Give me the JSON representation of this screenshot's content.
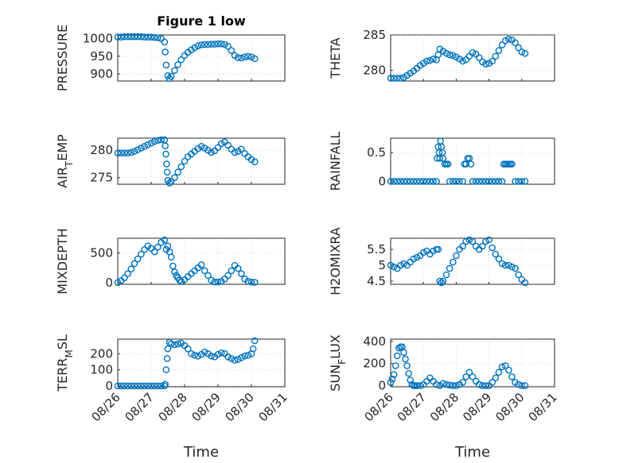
{
  "figure": {
    "title": "Figure 1 low",
    "marker_color": "#0072BD"
  },
  "chart_data": [
    {
      "type": "scatter",
      "title": "Figure 1 low",
      "ylabel": "PRESSURE",
      "xlabel": "",
      "xlim": [
        "08/26",
        "08/31"
      ],
      "x_tick_labels": [],
      "ylim": [
        880,
        1010
      ],
      "y_ticks": [
        1000,
        950,
        900
      ],
      "grid": true,
      "x": [
        0.0,
        0.1,
        0.2,
        0.3,
        0.4,
        0.5,
        0.6,
        0.7,
        0.8,
        0.9,
        1.0,
        1.1,
        1.2,
        1.3,
        1.4,
        1.42,
        1.45,
        1.5,
        1.55,
        1.6,
        1.7,
        1.8,
        1.9,
        2.0,
        2.1,
        2.2,
        2.3,
        2.4,
        2.5,
        2.6,
        2.7,
        2.8,
        2.9,
        3.0,
        3.1,
        3.2,
        3.3,
        3.4,
        3.5,
        3.6,
        3.7,
        3.8,
        3.9,
        4.0,
        4.1
      ],
      "y": [
        1004,
        1004,
        1005,
        1005,
        1005,
        1005,
        1005,
        1005,
        1004,
        1004,
        1004,
        1003,
        1002,
        1000,
        990,
        962,
        925,
        895,
        887,
        893,
        910,
        926,
        940,
        952,
        961,
        968,
        974,
        979,
        982,
        983,
        983,
        984,
        984,
        985,
        985,
        983,
        978,
        966,
        952,
        946,
        945,
        948,
        950,
        948,
        943
      ]
    },
    {
      "type": "scatter",
      "ylabel": "THETA",
      "xlabel": "",
      "xlim": [
        "08/26",
        "08/31"
      ],
      "x_tick_labels": [],
      "ylim": [
        278.5,
        285
      ],
      "y_ticks": [
        285,
        280
      ],
      "grid": true,
      "x": [
        0.0,
        0.1,
        0.2,
        0.3,
        0.4,
        0.5,
        0.6,
        0.7,
        0.8,
        0.9,
        1.0,
        1.1,
        1.2,
        1.3,
        1.4,
        1.45,
        1.5,
        1.6,
        1.7,
        1.8,
        1.9,
        2.0,
        2.1,
        2.2,
        2.3,
        2.4,
        2.5,
        2.6,
        2.7,
        2.8,
        2.9,
        3.0,
        3.1,
        3.2,
        3.3,
        3.4,
        3.5,
        3.6,
        3.7,
        3.8,
        3.9,
        4.0,
        4.1
      ],
      "y": [
        278.9,
        278.9,
        278.9,
        278.9,
        279.0,
        279.3,
        279.6,
        279.9,
        280.3,
        280.7,
        281.0,
        281.3,
        281.4,
        281.6,
        281.5,
        282.2,
        283.0,
        282.7,
        282.4,
        282.2,
        282.1,
        281.9,
        281.6,
        281.3,
        281.5,
        282.0,
        282.5,
        282.3,
        281.8,
        281.2,
        280.9,
        281.0,
        281.3,
        282.0,
        282.8,
        283.6,
        284.2,
        284.4,
        284.3,
        283.9,
        283.2,
        282.6,
        282.4
      ]
    },
    {
      "type": "scatter",
      "ylabel": "AIR_TEMP",
      "xlabel": "",
      "xlim": [
        "08/26",
        "08/31"
      ],
      "x_tick_labels": [],
      "ylim": [
        273.8,
        282.2
      ],
      "y_ticks": [
        280,
        275
      ],
      "grid": true,
      "x": [
        0.0,
        0.1,
        0.2,
        0.3,
        0.4,
        0.5,
        0.6,
        0.7,
        0.8,
        0.9,
        1.0,
        1.1,
        1.2,
        1.3,
        1.4,
        1.42,
        1.44,
        1.46,
        1.48,
        1.5,
        1.55,
        1.6,
        1.7,
        1.8,
        1.9,
        2.0,
        2.1,
        2.2,
        2.3,
        2.4,
        2.5,
        2.6,
        2.7,
        2.8,
        2.9,
        3.0,
        3.1,
        3.2,
        3.3,
        3.4,
        3.5,
        3.6,
        3.7,
        3.8,
        3.9,
        4.0,
        4.1
      ],
      "y": [
        279.5,
        279.5,
        279.5,
        279.5,
        279.6,
        279.8,
        280.1,
        280.4,
        280.7,
        281.0,
        281.3,
        281.6,
        281.8,
        281.9,
        281.9,
        280.8,
        279.3,
        277.5,
        276.0,
        274.5,
        274.0,
        274.3,
        275.0,
        276.0,
        277.0,
        278.0,
        278.8,
        279.3,
        279.8,
        280.3,
        280.7,
        280.4,
        280.0,
        279.6,
        279.9,
        280.5,
        281.2,
        281.5,
        280.9,
        280.2,
        279.6,
        279.8,
        280.2,
        279.4,
        278.8,
        278.3,
        277.9
      ]
    },
    {
      "type": "scatter",
      "ylabel": "RAINFALL",
      "xlabel": "",
      "xlim": [
        "08/26",
        "08/31"
      ],
      "x_tick_labels": [],
      "ylim": [
        -0.05,
        0.75
      ],
      "y_ticks": [
        0.5,
        0
      ],
      "grid": true,
      "x": [
        0.0,
        0.1,
        0.2,
        0.3,
        0.4,
        0.5,
        0.6,
        0.7,
        0.8,
        0.9,
        1.0,
        1.1,
        1.2,
        1.3,
        1.4,
        1.42,
        1.45,
        1.48,
        1.5,
        1.52,
        1.55,
        1.58,
        1.6,
        1.65,
        1.7,
        1.75,
        1.8,
        1.9,
        2.0,
        2.1,
        2.2,
        2.25,
        2.3,
        2.35,
        2.4,
        2.45,
        2.5,
        2.6,
        2.7,
        2.8,
        2.9,
        3.0,
        3.1,
        3.2,
        3.3,
        3.4,
        3.45,
        3.5,
        3.55,
        3.6,
        3.65,
        3.7,
        3.8,
        3.9,
        4.0,
        4.1
      ],
      "y": [
        0,
        0,
        0,
        0,
        0,
        0,
        0,
        0,
        0,
        0,
        0,
        0,
        0,
        0,
        0,
        0.4,
        0.6,
        0.5,
        0.4,
        0.7,
        0.6,
        0.5,
        0.4,
        0.3,
        0.3,
        0.3,
        0,
        0,
        0,
        0,
        0,
        0.3,
        0.3,
        0.4,
        0.4,
        0.3,
        0,
        0,
        0,
        0,
        0,
        0,
        0,
        0,
        0,
        0,
        0.3,
        0.3,
        0.3,
        0.3,
        0.3,
        0.3,
        0,
        0,
        0,
        0
      ]
    },
    {
      "type": "scatter",
      "ylabel": "MIXDEPTH",
      "xlabel": "",
      "xlim": [
        "08/26",
        "08/31"
      ],
      "x_tick_labels": [],
      "ylim": [
        -30,
        750
      ],
      "y_ticks": [
        500,
        0
      ],
      "grid": true,
      "x": [
        0.0,
        0.1,
        0.2,
        0.3,
        0.4,
        0.5,
        0.6,
        0.7,
        0.8,
        0.9,
        1.0,
        1.1,
        1.2,
        1.3,
        1.4,
        1.45,
        1.5,
        1.55,
        1.6,
        1.65,
        1.7,
        1.75,
        1.8,
        1.85,
        1.9,
        2.0,
        2.1,
        2.2,
        2.3,
        2.4,
        2.5,
        2.6,
        2.7,
        2.8,
        2.9,
        3.0,
        3.1,
        3.2,
        3.3,
        3.4,
        3.5,
        3.6,
        3.7,
        3.8,
        3.9,
        4.0,
        4.1
      ],
      "y": [
        0,
        30,
        80,
        150,
        230,
        320,
        400,
        480,
        560,
        620,
        580,
        520,
        600,
        680,
        720,
        560,
        620,
        520,
        430,
        280,
        180,
        120,
        80,
        40,
        20,
        50,
        100,
        150,
        200,
        250,
        300,
        200,
        120,
        40,
        10,
        10,
        20,
        60,
        120,
        200,
        290,
        240,
        150,
        60,
        20,
        10,
        5
      ]
    },
    {
      "type": "scatter",
      "ylabel": "H2OMIXRA",
      "xlabel": "",
      "xlim": [
        "08/26",
        "08/31"
      ],
      "x_tick_labels": [],
      "ylim": [
        4.4,
        5.85
      ],
      "y_ticks": [
        5.5,
        5,
        4.5
      ],
      "grid": true,
      "x": [
        0.0,
        0.1,
        0.2,
        0.3,
        0.4,
        0.5,
        0.6,
        0.7,
        0.8,
        0.9,
        1.0,
        1.1,
        1.2,
        1.3,
        1.4,
        1.45,
        1.5,
        1.55,
        1.6,
        1.7,
        1.8,
        1.9,
        2.0,
        2.1,
        2.2,
        2.3,
        2.4,
        2.5,
        2.6,
        2.7,
        2.8,
        2.9,
        3.0,
        3.1,
        3.2,
        3.3,
        3.4,
        3.5,
        3.6,
        3.7,
        3.8,
        3.9,
        4.0,
        4.1
      ],
      "y": [
        5.0,
        4.95,
        4.9,
        5.0,
        5.05,
        5.0,
        5.1,
        5.2,
        5.25,
        5.3,
        5.4,
        5.45,
        5.35,
        5.45,
        5.5,
        5.5,
        4.5,
        4.45,
        4.5,
        4.7,
        4.9,
        5.1,
        5.3,
        5.5,
        5.6,
        5.75,
        5.8,
        5.75,
        5.6,
        5.5,
        5.6,
        5.75,
        5.8,
        5.55,
        5.35,
        5.2,
        5.05,
        5.0,
        5.0,
        4.95,
        4.9,
        4.7,
        4.55,
        4.45
      ]
    },
    {
      "type": "scatter",
      "ylabel": "TERR_MSL",
      "xlabel": "Time",
      "xlim": [
        "08/26",
        "08/31"
      ],
      "x_tick_labels": [
        "08/26",
        "08/27",
        "08/28",
        "08/29",
        "08/30",
        "08/31"
      ],
      "ylim": [
        -5,
        290
      ],
      "y_ticks": [
        200,
        100,
        0
      ],
      "grid": true,
      "x": [
        0.0,
        0.1,
        0.2,
        0.3,
        0.4,
        0.5,
        0.6,
        0.7,
        0.8,
        0.9,
        1.0,
        1.1,
        1.2,
        1.3,
        1.4,
        1.42,
        1.45,
        1.48,
        1.5,
        1.55,
        1.6,
        1.7,
        1.8,
        1.9,
        2.0,
        2.1,
        2.2,
        2.3,
        2.4,
        2.5,
        2.6,
        2.7,
        2.8,
        2.9,
        3.0,
        3.1,
        3.2,
        3.3,
        3.4,
        3.5,
        3.6,
        3.7,
        3.8,
        3.9,
        4.0,
        4.05,
        4.1
      ],
      "y": [
        0,
        0,
        0,
        0,
        0,
        0,
        0,
        0,
        0,
        0,
        0,
        0,
        0,
        0,
        0,
        10,
        100,
        170,
        230,
        270,
        260,
        255,
        260,
        265,
        250,
        230,
        200,
        190,
        185,
        195,
        210,
        200,
        185,
        180,
        195,
        205,
        200,
        180,
        170,
        160,
        165,
        175,
        185,
        190,
        200,
        230,
        280
      ]
    },
    {
      "type": "scatter",
      "ylabel": "SUN_FLUX",
      "xlabel": "Time",
      "xlim": [
        "08/26",
        "08/31"
      ],
      "x_tick_labels": [
        "08/26",
        "08/27",
        "08/28",
        "08/29",
        "08/30",
        "08/31"
      ],
      "ylim": [
        -10,
        420
      ],
      "y_ticks": [
        400,
        200,
        0
      ],
      "grid": true,
      "x": [
        0.0,
        0.05,
        0.1,
        0.15,
        0.2,
        0.25,
        0.3,
        0.35,
        0.4,
        0.45,
        0.5,
        0.55,
        0.6,
        0.65,
        0.7,
        0.75,
        0.8,
        0.9,
        1.0,
        1.1,
        1.2,
        1.3,
        1.4,
        1.5,
        1.6,
        1.7,
        1.8,
        1.9,
        2.0,
        2.1,
        2.2,
        2.3,
        2.4,
        2.5,
        2.6,
        2.7,
        2.8,
        2.9,
        3.0,
        3.1,
        3.2,
        3.3,
        3.4,
        3.5,
        3.6,
        3.7,
        3.8,
        3.9,
        4.0,
        4.1
      ],
      "y": [
        30,
        60,
        100,
        180,
        270,
        340,
        350,
        350,
        300,
        240,
        180,
        110,
        50,
        10,
        0,
        0,
        0,
        0,
        10,
        40,
        70,
        40,
        10,
        0,
        20,
        10,
        5,
        0,
        0,
        10,
        30,
        80,
        120,
        80,
        40,
        10,
        0,
        0,
        0,
        30,
        70,
        120,
        170,
        180,
        140,
        80,
        30,
        10,
        0,
        0
      ]
    }
  ]
}
